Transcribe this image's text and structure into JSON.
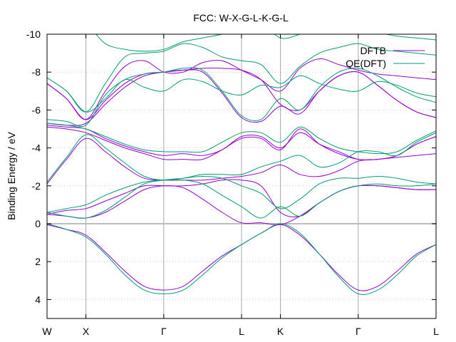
{
  "chart_data": {
    "type": "line",
    "title": "FCC: W-X-G-L-K-G-L",
    "xlabel": "",
    "ylabel": "Binding Energy / eV",
    "xlim": [
      0,
      10
    ],
    "ylim": [
      5,
      -10
    ],
    "y_reversed": true,
    "grid": true,
    "legend_position": "top-right",
    "x_ticks": [
      {
        "x": 0,
        "label": "W"
      },
      {
        "x": 1,
        "label": "X"
      },
      {
        "x": 3,
        "label": "Γ"
      },
      {
        "x": 5,
        "label": "L"
      },
      {
        "x": 6,
        "label": "K"
      },
      {
        "x": 8,
        "label": "Γ"
      },
      {
        "x": 10,
        "label": "L"
      }
    ],
    "y_ticks": [
      -10,
      -8,
      -6,
      -4,
      -2,
      0,
      2,
      4
    ],
    "zero_line": 0,
    "legend": [
      {
        "name": "DFTB",
        "color": "#9400d3"
      },
      {
        "name": "QE(DFT)",
        "color": "#009e73"
      }
    ],
    "series": [
      {
        "name": "DFTB",
        "color": "#9400d3",
        "bands": [
          {
            "x": [
              0,
              0.5,
              1,
              1.5,
              2,
              2.5,
              3,
              3.5,
              4,
              4.5,
              5,
              5.5,
              6,
              6.5,
              7,
              7.5,
              8,
              8.5,
              9,
              9.5,
              10
            ],
            "y": [
              0.05,
              0.3,
              0.6,
              1.5,
              2.5,
              3.3,
              3.5,
              3.3,
              2.5,
              1.7,
              1.1,
              0.5,
              0.05,
              0.6,
              1.6,
              2.7,
              3.5,
              3.3,
              2.5,
              1.6,
              1.1
            ]
          },
          {
            "x": [
              0,
              0.5,
              1,
              1.5,
              2,
              2.5,
              3,
              3.5,
              4,
              4.5,
              5,
              5.5,
              6,
              6.5,
              7,
              7.5,
              8,
              8.5,
              9,
              9.5,
              10
            ],
            "y": [
              -0.5,
              -0.4,
              -0.3,
              -0.6,
              -1.2,
              -1.8,
              -2.0,
              -1.9,
              -1.3,
              -0.6,
              -0.05,
              -0.05,
              0.05,
              -0.4,
              -1.1,
              -1.7,
              -2.0,
              -2.0,
              -1.9,
              -1.8,
              -1.8
            ]
          },
          {
            "x": [
              0,
              0.5,
              1,
              1.5,
              2,
              2.5,
              3,
              3.5,
              4,
              4.5,
              5,
              5.5,
              6,
              6.5,
              7,
              7.5,
              8,
              8.5,
              9,
              9.5,
              10
            ],
            "y": [
              -0.5,
              -0.7,
              -0.8,
              -1.2,
              -1.6,
              -2.0,
              -2.0,
              -2.0,
              -2.1,
              -2.3,
              -2.3,
              -2.0,
              -0.6,
              -0.4,
              -1.1,
              -1.7,
              -2.0,
              -2.0,
              -1.9,
              -1.8,
              -1.8
            ]
          },
          {
            "x": [
              0,
              0.5,
              1,
              1.5,
              2,
              2.5,
              3,
              3.5,
              4,
              4.5,
              5,
              5.5,
              6,
              6.5,
              7,
              7.5,
              8,
              8.5,
              9,
              9.5,
              10
            ],
            "y": [
              -2.1,
              -3.4,
              -4.5,
              -3.8,
              -3.0,
              -2.4,
              -2.3,
              -2.3,
              -2.3,
              -2.4,
              -2.5,
              -2.7,
              -3.1,
              -2.6,
              -2.5,
              -2.8,
              -3.3,
              -3.4,
              -3.5,
              -3.6,
              -3.7
            ]
          },
          {
            "x": [
              0,
              0.5,
              1,
              1.5,
              2,
              2.5,
              3,
              3.5,
              4,
              4.5,
              5,
              5.5,
              6,
              6.5,
              7,
              7.5,
              8,
              8.5,
              9,
              9.5,
              10
            ],
            "y": [
              -5.1,
              -5.0,
              -4.8,
              -4.4,
              -4.0,
              -3.7,
              -3.4,
              -3.4,
              -3.4,
              -3.9,
              -4.5,
              -4.5,
              -3.9,
              -5.0,
              -4.2,
              -3.7,
              -3.4,
              -3.4,
              -3.6,
              -4.2,
              -4.6
            ]
          },
          {
            "x": [
              0,
              0.5,
              1,
              1.5,
              2,
              2.5,
              3,
              3.5,
              4,
              4.5,
              5,
              5.5,
              6,
              6.5,
              7,
              7.5,
              8,
              8.5,
              9,
              9.5,
              10
            ],
            "y": [
              -5.2,
              -5.1,
              -5.0,
              -4.5,
              -4.1,
              -3.8,
              -3.6,
              -3.7,
              -3.6,
              -3.9,
              -4.6,
              -4.6,
              -4.0,
              -4.8,
              -4.2,
              -3.8,
              -3.4,
              -3.4,
              -3.6,
              -4.2,
              -4.6
            ]
          },
          {
            "x": [
              0,
              0.5,
              1,
              1.5,
              2,
              2.5,
              3,
              3.5,
              4,
              4.5,
              5,
              5.5,
              6,
              6.5,
              7,
              7.5,
              8,
              8.5,
              9,
              9.5,
              10
            ],
            "y": [
              -5.3,
              -5.2,
              -5.3,
              -6.3,
              -7.2,
              -7.8,
              -8.0,
              -8.1,
              -8.0,
              -6.9,
              -5.6,
              -5.4,
              -6.2,
              -5.8,
              -7.0,
              -7.8,
              -8.0,
              -7.3,
              -6.5,
              -5.9,
              -5.6
            ]
          },
          {
            "x": [
              0,
              0.5,
              1,
              1.5,
              2,
              2.5,
              3,
              3.5,
              4,
              4.5,
              5,
              5.5,
              6,
              6.5,
              7,
              7.5,
              8,
              8.5,
              9,
              9.5,
              10
            ],
            "y": [
              -7.4,
              -6.6,
              -5.5,
              -6.5,
              -7.4,
              -7.9,
              -8.0,
              -8.1,
              -8.2,
              -8.2,
              -8.1,
              -7.6,
              -6.3,
              -6.0,
              -7.0,
              -7.8,
              -8.0,
              -7.3,
              -6.5,
              -5.9,
              -5.6
            ]
          },
          {
            "x": [
              0,
              0.5,
              1,
              1.5,
              2,
              2.5,
              3,
              3.5,
              4,
              4.5,
              5,
              5.5,
              6,
              6.5,
              7,
              7.5,
              8,
              8.5,
              9,
              9.5,
              10
            ],
            "y": [
              -7.4,
              -6.6,
              -5.5,
              -7.0,
              -8.3,
              -8.6,
              -8.0,
              -8.0,
              -8.5,
              -8.6,
              -8.1,
              -7.6,
              -7.0,
              -8.2,
              -8.7,
              -8.4,
              -8.1,
              -7.9,
              -7.8,
              -7.7,
              -7.6
            ]
          }
        ]
      },
      {
        "name": "QE(DFT)",
        "color": "#009e73",
        "bands": [
          {
            "x": [
              0,
              0.5,
              1,
              1.5,
              2,
              2.5,
              3,
              3.5,
              4,
              4.5,
              5,
              5.5,
              6,
              6.5,
              7,
              7.5,
              8,
              8.5,
              9,
              9.5,
              10
            ],
            "y": [
              0.0,
              0.3,
              0.7,
              1.6,
              2.7,
              3.5,
              3.7,
              3.5,
              2.7,
              1.8,
              1.1,
              0.5,
              0.0,
              0.5,
              1.6,
              2.8,
              3.7,
              3.5,
              2.7,
              1.7,
              1.1
            ]
          },
          {
            "x": [
              0,
              0.5,
              1,
              1.5,
              2,
              2.5,
              3,
              3.5,
              4,
              4.5,
              5,
              5.5,
              6,
              6.5,
              7,
              7.5,
              8,
              8.5,
              9,
              9.5,
              10
            ],
            "y": [
              -0.6,
              -0.8,
              -1.0,
              -1.5,
              -1.9,
              -2.2,
              -2.3,
              -2.3,
              -2.1,
              -1.5,
              -0.9,
              -0.3,
              -0.9,
              -0.4,
              -1.1,
              -1.7,
              -2.0,
              -2.1,
              -2.0,
              -2.0,
              -2.1
            ]
          },
          {
            "x": [
              0,
              0.5,
              1,
              1.5,
              2,
              2.5,
              3,
              3.5,
              4,
              4.5,
              5,
              5.5,
              6,
              6.5,
              7,
              7.5,
              8,
              8.5,
              9,
              9.5,
              10
            ],
            "y": [
              -0.6,
              -0.4,
              -0.3,
              -0.7,
              -1.4,
              -2.1,
              -2.3,
              -2.4,
              -2.5,
              -2.4,
              -2.0,
              -1.6,
              -0.8,
              -1.3,
              -2.1,
              -2.4,
              -2.4,
              -2.5,
              -2.4,
              -2.2,
              -2.1
            ]
          },
          {
            "x": [
              0,
              0.5,
              1,
              1.5,
              2,
              2.5,
              3,
              3.5,
              4,
              4.5,
              5,
              5.5,
              6,
              6.5,
              7,
              7.5,
              8,
              8.5,
              9,
              9.5,
              10
            ],
            "y": [
              -2.2,
              -3.5,
              -4.7,
              -4.0,
              -3.2,
              -2.5,
              -2.3,
              -2.4,
              -2.6,
              -2.6,
              -2.6,
              -3.0,
              -3.3,
              -3.6,
              -3.0,
              -3.2,
              -3.8,
              -3.8,
              -3.6,
              -4.3,
              -4.8
            ]
          },
          {
            "x": [
              0,
              0.5,
              1,
              1.5,
              2,
              2.5,
              3,
              3.5,
              4,
              4.5,
              5,
              5.5,
              6,
              6.5,
              7,
              7.5,
              8,
              8.5,
              9,
              9.5,
              10
            ],
            "y": [
              -5.3,
              -5.2,
              -5.0,
              -4.6,
              -4.2,
              -3.9,
              -3.8,
              -3.8,
              -3.8,
              -4.3,
              -4.8,
              -4.8,
              -4.3,
              -5.1,
              -4.5,
              -4.0,
              -3.8,
              -3.7,
              -3.8,
              -4.4,
              -4.9
            ]
          },
          {
            "x": [
              0,
              0.5,
              1,
              1.5,
              2,
              2.5,
              3,
              3.5,
              4,
              4.5,
              5,
              5.5,
              6,
              6.5,
              7,
              7.5,
              8,
              8.5,
              9,
              9.5,
              10
            ],
            "y": [
              -5.5,
              -5.4,
              -5.2,
              -6.8,
              -7.6,
              -7.9,
              -8.0,
              -8.2,
              -8.1,
              -7.0,
              -5.7,
              -5.5,
              -6.6,
              -6.0,
              -7.2,
              -8.0,
              -8.2,
              -7.8,
              -7.2,
              -6.7,
              -6.4
            ]
          },
          {
            "x": [
              0,
              0.5,
              1,
              1.5,
              2,
              2.5,
              3,
              3.5,
              4,
              4.5,
              5,
              5.5,
              6,
              6.5,
              7,
              7.5,
              8,
              8.5,
              9,
              9.5,
              10
            ],
            "y": [
              -7.7,
              -7.0,
              -5.9,
              -6.6,
              -7.6,
              -7.2,
              -7.0,
              -7.6,
              -7.5,
              -7.0,
              -6.8,
              -7.3,
              -7.2,
              -7.8,
              -7.4,
              -7.1,
              -7.0,
              -7.5,
              -7.3,
              -6.9,
              -6.7
            ]
          },
          {
            "x": [
              0,
              0.5,
              1,
              1.5,
              2,
              2.5,
              3,
              3.5,
              4,
              4.5,
              5,
              5.5,
              6,
              6.5,
              7,
              7.5,
              8,
              8.5,
              9,
              9.5,
              10
            ],
            "y": [
              -7.7,
              -7.0,
              -5.9,
              -7.4,
              -8.8,
              -9.0,
              -9.1,
              -9.5,
              -9.3,
              -8.8,
              -8.6,
              -8.4,
              -7.4,
              -8.3,
              -9.0,
              -9.3,
              -9.5,
              -9.2,
              -9.1,
              -9.0,
              -8.9
            ]
          },
          {
            "x": [
              0,
              0.5,
              1,
              1.5,
              2,
              2.5,
              3,
              3.5,
              4,
              4.5,
              5,
              5.5,
              6,
              6.5,
              7,
              7.5,
              8,
              8.5,
              9,
              9.5,
              10
            ],
            "y": [
              -10.5,
              -10.5,
              -10.5,
              -9.5,
              -9.2,
              -9.1,
              -9.2,
              -9.6,
              -9.8,
              -10.0,
              -10.3,
              -10.6,
              -9.8,
              -10.0,
              -10.4,
              -10.6,
              -10.4,
              -10.1,
              -9.9,
              -9.8,
              -9.7
            ]
          }
        ]
      }
    ]
  }
}
